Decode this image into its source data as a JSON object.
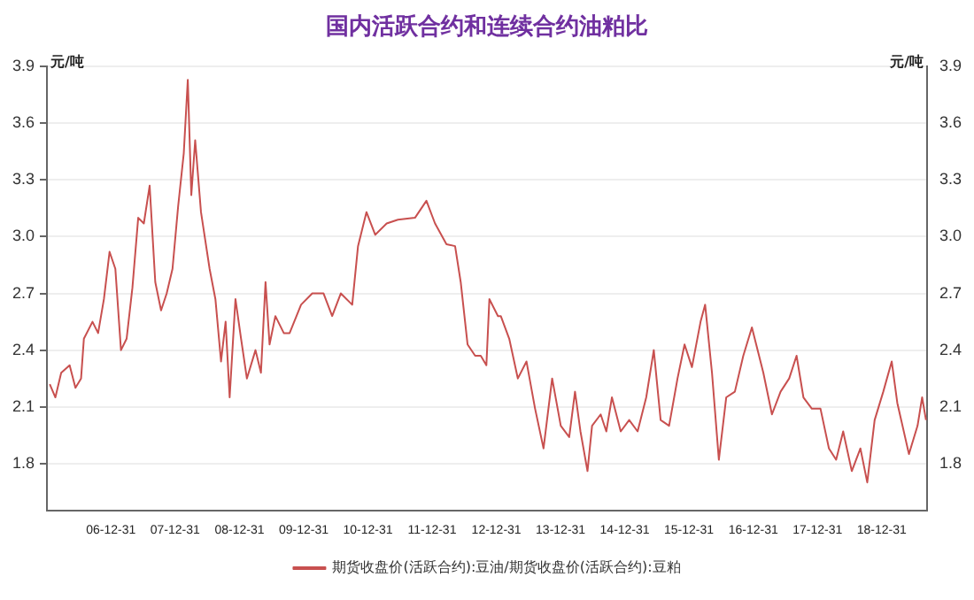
{
  "chart_data": {
    "type": "line",
    "title": "国内活跃合约和连续合约油粕比",
    "ylabel": "元/吨",
    "y2label": "元/吨",
    "xlim": [
      "2006-01-01",
      "2019-09-15"
    ],
    "xticks": [
      {
        "value": "2006-12-31",
        "label": "06-12-31"
      },
      {
        "value": "2007-12-31",
        "label": "07-12-31"
      },
      {
        "value": "2008-12-31",
        "label": "08-12-31"
      },
      {
        "value": "2009-12-31",
        "label": "09-12-31"
      },
      {
        "value": "2010-12-31",
        "label": "10-12-31"
      },
      {
        "value": "2011-12-31",
        "label": "11-12-31"
      },
      {
        "value": "2012-12-31",
        "label": "12-12-31"
      },
      {
        "value": "2013-12-31",
        "label": "13-12-31"
      },
      {
        "value": "2014-12-31",
        "label": "14-12-31"
      },
      {
        "value": "2015-12-31",
        "label": "15-12-31"
      },
      {
        "value": "2016-12-31",
        "label": "16-12-31"
      },
      {
        "value": "2017-12-31",
        "label": "17-12-31"
      },
      {
        "value": "2018-12-31",
        "label": "18-12-31"
      }
    ],
    "ylim": [
      1.55,
      3.9
    ],
    "yticks": [
      1.8,
      2.1,
      2.4,
      2.7,
      {
        "value": 3,
        "label": "3.0"
      },
      3.3,
      3.6,
      3.9
    ],
    "y2lim": [
      1.55,
      3.9
    ],
    "y2ticks": [
      1.8,
      2.1,
      2.4,
      2.7,
      {
        "value": 3,
        "label": "3.0"
      },
      3.3,
      3.6,
      3.9
    ],
    "grid": "y",
    "legend": "bottom",
    "marker": "none",
    "line_style": "solid",
    "x": [
      "2006-01-17",
      "2006-02-18",
      "2006-03-23",
      "2006-05-10",
      "2006-06-12",
      "2006-07-14",
      "2006-07-30",
      "2006-09-17",
      "2006-10-19",
      "2006-11-21",
      "2006-12-23",
      "2007-01-25",
      "2007-02-26",
      "2007-03-30",
      "2007-05-02",
      "2007-06-04",
      "2007-07-06",
      "2007-08-08",
      "2007-09-09",
      "2007-10-12",
      "2007-11-13",
      "2007-12-16",
      "2008-01-17",
      "2008-02-18",
      "2008-03-12",
      "2008-04-01",
      "2008-04-23",
      "2008-05-26",
      "2008-07-14",
      "2008-08-16",
      "2008-09-17",
      "2008-10-13",
      "2008-11-05",
      "2008-12-08",
      "2009-01-09",
      "2009-02-11",
      "2009-04-01",
      "2009-05-02",
      "2009-05-28",
      "2009-06-20",
      "2009-07-23",
      "2009-09-09",
      "2009-10-12",
      "2009-12-16",
      "2010-02-18",
      "2010-04-23",
      "2010-06-11",
      "2010-07-30",
      "2010-10-03",
      "2010-11-05",
      "2010-12-23",
      "2011-02-11",
      "2011-04-17",
      "2011-06-20",
      "2011-09-25",
      "2011-11-29",
      "2012-01-17",
      "2012-03-22",
      "2012-05-10",
      "2012-06-11",
      "2012-07-20",
      "2012-09-01",
      "2012-10-03",
      "2012-11-04",
      "2012-11-21",
      "2013-01-09",
      "2013-01-25",
      "2013-03-14",
      "2013-05-02",
      "2013-06-20",
      "2013-08-08",
      "2013-09-25",
      "2013-11-13",
      "2014-01-01",
      "2014-02-18",
      "2014-03-23",
      "2014-04-23",
      "2014-06-02",
      "2014-06-28",
      "2014-08-16",
      "2014-09-17",
      "2014-10-19",
      "2014-12-08",
      "2015-01-25",
      "2015-03-14",
      "2015-05-02",
      "2015-06-14",
      "2015-07-23",
      "2015-09-09",
      "2015-10-27",
      "2015-12-06",
      "2016-01-17",
      "2016-03-06",
      "2016-04-01",
      "2016-05-10",
      "2016-06-18",
      "2016-07-30",
      "2016-09-17",
      "2016-11-04",
      "2016-12-23",
      "2017-02-26",
      "2017-04-16",
      "2017-06-04",
      "2017-07-23",
      "2017-09-03",
      "2017-10-12",
      "2017-11-29",
      "2018-01-17",
      "2018-03-06",
      "2018-04-16",
      "2018-05-26",
      "2018-07-14",
      "2018-09-01",
      "2018-10-10",
      "2018-11-21",
      "2019-01-09",
      "2019-02-26",
      "2019-03-30",
      "2019-06-04",
      "2019-07-23",
      "2019-08-18",
      "2019-09-09"
    ],
    "series": [
      {
        "name": "期货收盘价(活跃合约):豆油/期货收盘价(活跃合约):豆粕",
        "color": "#c8504f",
        "values": [
          2.22,
          2.15,
          2.28,
          2.32,
          2.2,
          2.25,
          2.46,
          2.55,
          2.49,
          2.67,
          2.92,
          2.83,
          2.4,
          2.46,
          2.73,
          3.1,
          3.07,
          3.27,
          2.76,
          2.61,
          2.7,
          2.83,
          3.16,
          3.44,
          3.83,
          3.22,
          3.51,
          3.13,
          2.83,
          2.67,
          2.34,
          2.55,
          2.15,
          2.67,
          2.46,
          2.25,
          2.4,
          2.28,
          2.76,
          2.43,
          2.58,
          2.49,
          2.49,
          2.64,
          2.7,
          2.7,
          2.58,
          2.7,
          2.64,
          2.95,
          3.13,
          3.01,
          3.07,
          3.09,
          3.1,
          3.19,
          3.07,
          2.96,
          2.95,
          2.76,
          2.43,
          2.37,
          2.37,
          2.32,
          2.67,
          2.58,
          2.58,
          2.46,
          2.25,
          2.34,
          2.09,
          1.88,
          2.25,
          2.0,
          1.94,
          2.18,
          1.97,
          1.76,
          2.0,
          2.06,
          1.97,
          2.15,
          1.97,
          2.03,
          1.97,
          2.15,
          2.4,
          2.03,
          2.0,
          2.25,
          2.43,
          2.31,
          2.55,
          2.64,
          2.28,
          1.82,
          2.15,
          2.18,
          2.37,
          2.52,
          2.28,
          2.06,
          2.18,
          2.25,
          2.37,
          2.15,
          2.09,
          2.09,
          1.88,
          1.82,
          1.97,
          1.76,
          1.88,
          1.7,
          2.03,
          2.18,
          2.34,
          2.12,
          1.85,
          2.0,
          2.15,
          2.03
        ]
      }
    ]
  }
}
